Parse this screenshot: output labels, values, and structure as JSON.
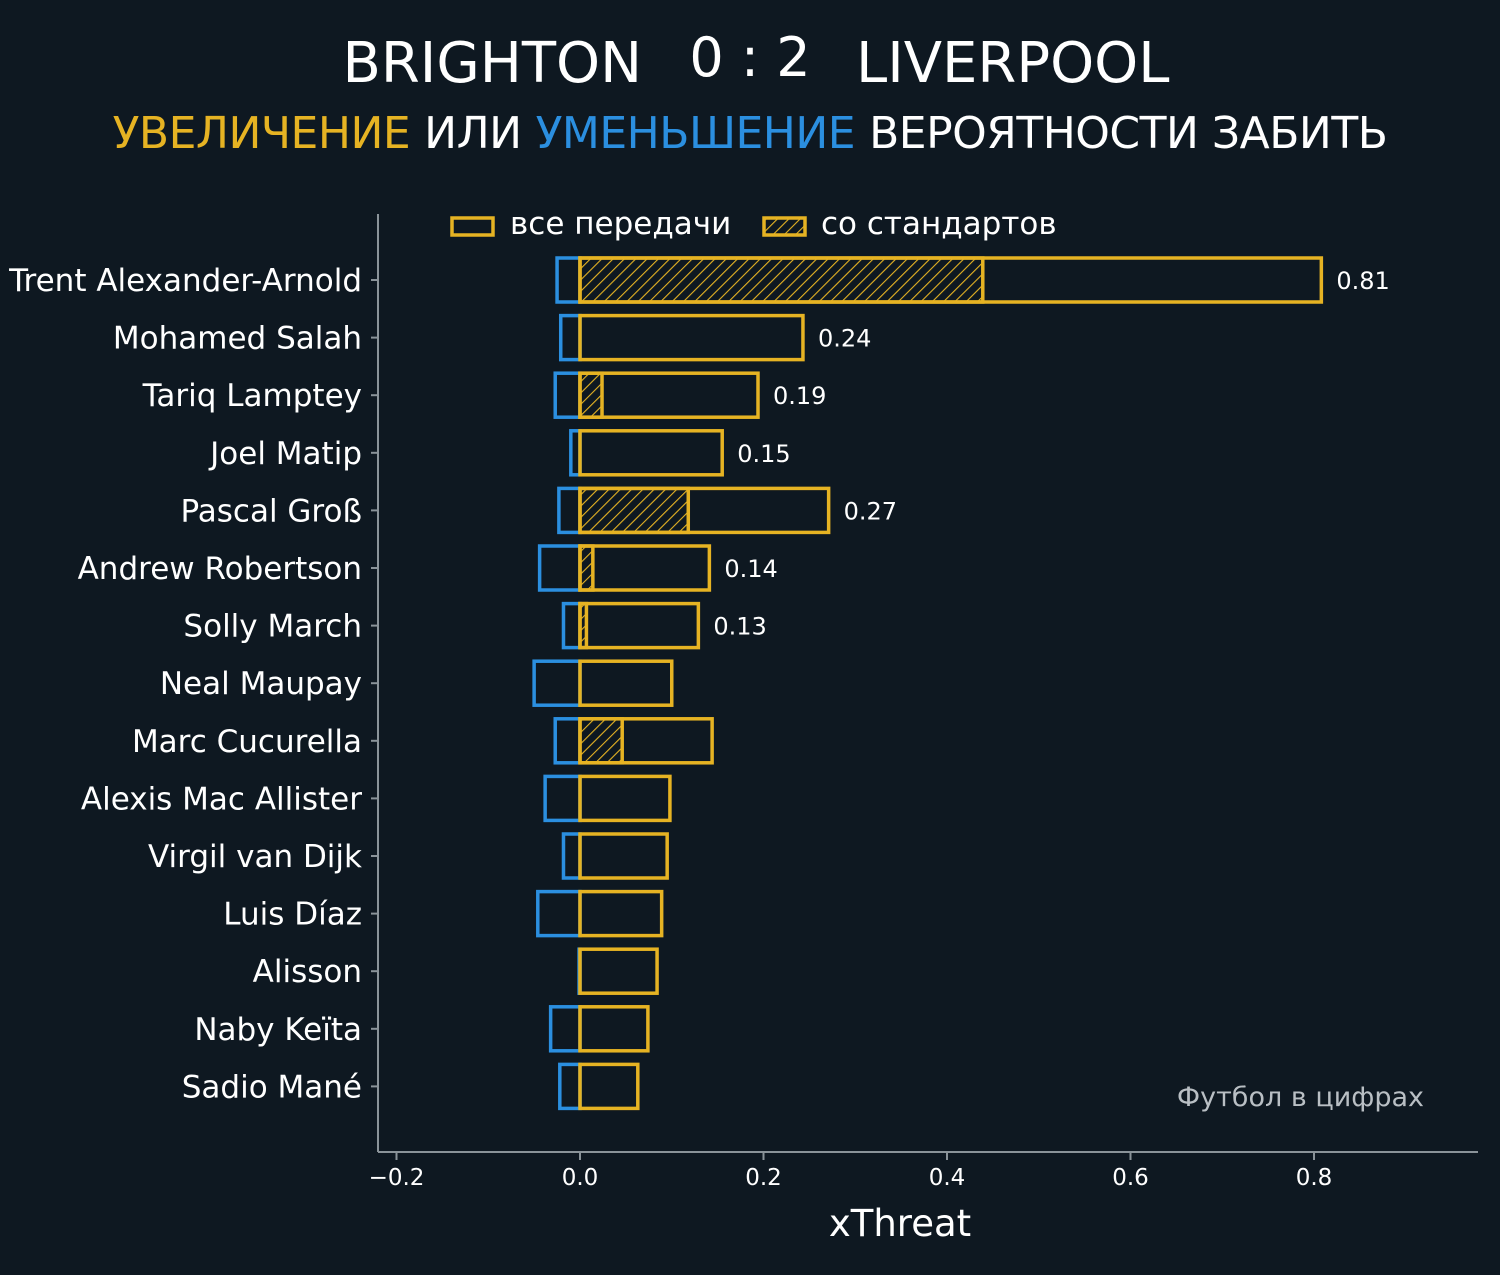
{
  "header": {
    "home_team": "BRIGHTON",
    "score": "0 : 2",
    "away_team": "LIVERPOOL",
    "subtitle_increase": "УВЕЛИЧЕНИЕ",
    "subtitle_or": "ИЛИ",
    "subtitle_decrease": "УМЕНЬШЕНИЕ",
    "subtitle_rest": "ВЕРОЯТНОСТИ ЗАБИТЬ"
  },
  "colors": {
    "background": "#0e1821",
    "increase": "#e6b323",
    "decrease": "#2b8fe0",
    "axis": "#8a9399",
    "text": "#ffffff"
  },
  "chart_data": {
    "type": "bar",
    "orientation": "horizontal",
    "xlabel": "xThreat",
    "xlim": [
      -0.22,
      0.98
    ],
    "xticks": [
      -0.2,
      0.0,
      0.2,
      0.4,
      0.6,
      0.8
    ],
    "xtick_labels": [
      "−0.2",
      "0.0",
      "0.2",
      "0.4",
      "0.6",
      "0.8"
    ],
    "legend": {
      "position": "top",
      "items": [
        {
          "label": "все передачи",
          "style": "outline"
        },
        {
          "label": "со стандартов",
          "style": "hatched"
        }
      ]
    },
    "categories": [
      "Trent Alexander-Arnold",
      "Mohamed Salah",
      "Tariq Lamptey",
      "Joel Matip",
      "Pascal Groß",
      "Andrew Robertson",
      "Solly March",
      "Neal Maupay",
      "Marc Cucurella",
      "Alexis Mac Allister",
      "Virgil van Dijk",
      "Luis Díaz",
      "Alisson",
      "Naby Keïta",
      "Sadio Mané"
    ],
    "series": [
      {
        "name": "все передачи",
        "values": [
          0.808,
          0.243,
          0.194,
          0.155,
          0.271,
          0.141,
          0.129,
          0.1,
          0.144,
          0.098,
          0.095,
          0.089,
          0.084,
          0.074,
          0.063
        ]
      },
      {
        "name": "со стандартов",
        "values": [
          0.439,
          0,
          0.024,
          0,
          0.118,
          0.014,
          0.007,
          0,
          0.046,
          0,
          0,
          0,
          0,
          0,
          0
        ]
      },
      {
        "values": [
          -0.025,
          -0.021,
          -0.027,
          -0.01,
          -0.023,
          -0.044,
          -0.018,
          -0.05,
          -0.027,
          -0.038,
          -0.018,
          -0.046,
          -0.001,
          -0.032,
          -0.022
        ]
      }
    ],
    "data_labels": [
      "0.81",
      "0.24",
      "0.19",
      "0.15",
      "0.27",
      "0.14",
      "0.13",
      "",
      "",
      "",
      "",
      "",
      "",
      "",
      ""
    ],
    "grid": false
  },
  "watermark": "Футбол в цифрах"
}
